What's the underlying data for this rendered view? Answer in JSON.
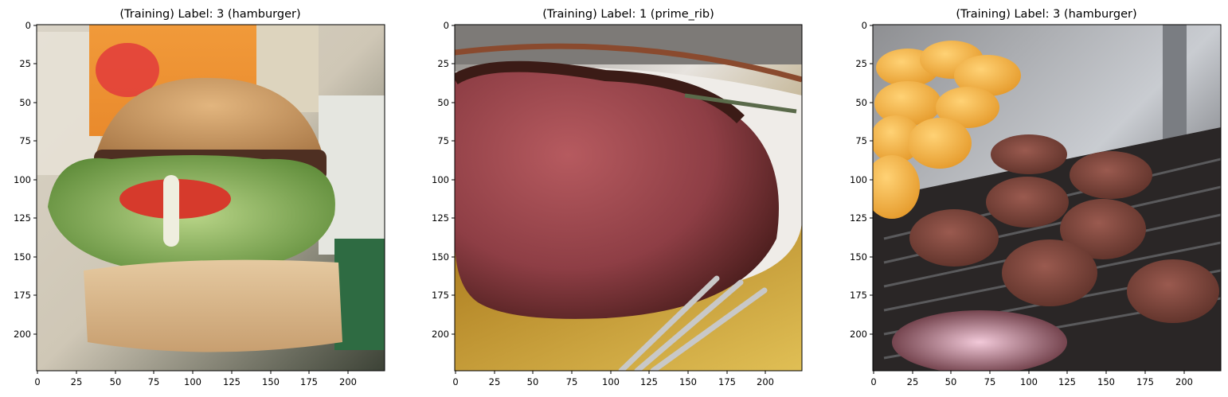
{
  "chart_data": [
    {
      "type": "image",
      "title": "(Training)  Label: 3 (hamburger)",
      "label_index": 3,
      "label_name": "hamburger",
      "xlim": [
        -0.5,
        223.5
      ],
      "ylim": [
        223.5,
        -0.5
      ],
      "xticks": [
        0,
        25,
        50,
        75,
        100,
        125,
        150,
        175,
        200
      ],
      "yticks": [
        0,
        25,
        50,
        75,
        100,
        125,
        150,
        175,
        200
      ],
      "image_subject": "hamburger"
    },
    {
      "type": "image",
      "title": "(Training)  Label: 1 (prime_rib)",
      "label_index": 1,
      "label_name": "prime_rib",
      "xlim": [
        -0.5,
        223.5
      ],
      "ylim": [
        223.5,
        -0.5
      ],
      "xticks": [
        0,
        25,
        50,
        75,
        100,
        125,
        150,
        175,
        200
      ],
      "yticks": [
        0,
        25,
        50,
        75,
        100,
        125,
        150,
        175,
        200
      ],
      "image_subject": "prime rib"
    },
    {
      "type": "image",
      "title": "(Training)  Label: 3 (hamburger)",
      "label_index": 3,
      "label_name": "hamburger",
      "xlim": [
        -0.5,
        223.5
      ],
      "ylim": [
        223.5,
        -0.5
      ],
      "xticks": [
        0,
        25,
        50,
        75,
        100,
        125,
        150,
        175,
        200
      ],
      "yticks": [
        0,
        25,
        50,
        75,
        100,
        125,
        150,
        175,
        200
      ],
      "image_subject": "grilled patties"
    }
  ],
  "colors": {
    "axes": "#000000",
    "background": "#ffffff"
  }
}
